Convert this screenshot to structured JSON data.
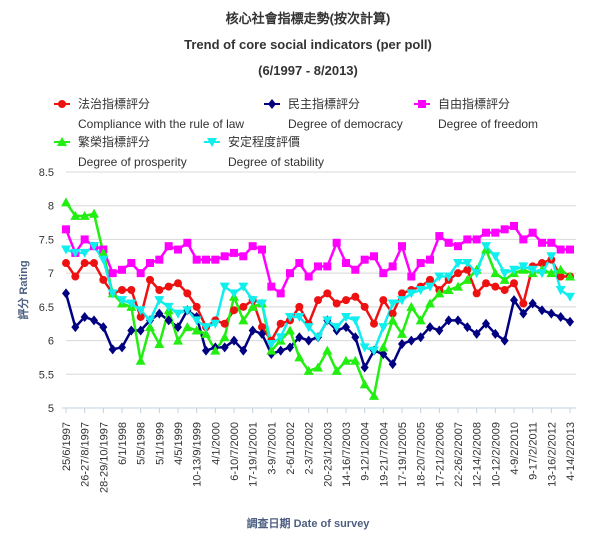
{
  "chart_data": {
    "type": "line",
    "title": "核心社會指標走勢(按次計算)",
    "subtitle": "Trend of core social indicators (per poll)",
    "period": "(6/1997 - 8/2013)",
    "y_label": "評分 Rating",
    "x_label": "調查日期 Date of survey",
    "categories": [
      "25/6/1997",
      null,
      "26-27/8/1997",
      null,
      "28-29/10/1997",
      null,
      "6/1/1998",
      null,
      "5/5/1998",
      null,
      "5/1/1999",
      null,
      "4/5/1999",
      null,
      "10-13/9/1999",
      null,
      "4/1/2000",
      null,
      "6-10/7/2000",
      null,
      "17-19/1/2001",
      null,
      "3-9/7/2001",
      null,
      "2-6/1/2002",
      null,
      "2-3/7/2002",
      null,
      "20-23/1/2003",
      null,
      "14-16/7/2003",
      null,
      "9-12/1/2004",
      null,
      "19-21/7/2004",
      null,
      "17-19/1/2005",
      null,
      "18-20/7/2005",
      null,
      "17-21/2/2006",
      null,
      "22-26/2/2007",
      null,
      "12-14/2/2008",
      null,
      "10-12/2/2009",
      null,
      "4-9/2/2010",
      null,
      "9-17/2/2011",
      null,
      "13-16/2/2012",
      null,
      "4-14/2/2013"
    ],
    "series": [
      {
        "name": "法治指標評分",
        "name_en": "Compliance with the rule of law",
        "color": "#ee1111",
        "marker": "circle",
        "values": [
          7.15,
          6.95,
          7.15,
          7.15,
          6.9,
          6.7,
          6.75,
          6.75,
          6.35,
          6.9,
          6.75,
          6.8,
          6.85,
          6.7,
          6.5,
          6.2,
          6.3,
          6.25,
          6.45,
          6.5,
          6.6,
          6.2,
          6.0,
          6.25,
          6.3,
          6.5,
          6.25,
          6.6,
          6.7,
          6.55,
          6.6,
          6.65,
          6.5,
          6.25,
          6.6,
          6.4,
          6.7,
          6.75,
          6.8,
          6.9,
          6.75,
          6.9,
          7.0,
          7.05,
          6.7,
          6.85,
          6.8,
          6.75,
          6.85,
          6.55,
          7.1,
          7.15,
          7.2,
          6.95,
          6.95
        ]
      },
      {
        "name": "民主指標評分",
        "name_en": "Degree of democracy",
        "color": "#000080",
        "marker": "diamond",
        "values": [
          6.7,
          6.2,
          6.35,
          6.3,
          6.2,
          5.87,
          5.9,
          6.15,
          6.15,
          6.3,
          6.4,
          6.3,
          6.2,
          6.45,
          6.35,
          5.85,
          5.9,
          5.9,
          6.0,
          5.85,
          6.15,
          6.1,
          5.8,
          5.85,
          5.9,
          6.05,
          6.0,
          6.05,
          6.3,
          6.15,
          6.2,
          6.05,
          5.6,
          5.85,
          5.8,
          5.65,
          5.95,
          6.0,
          6.05,
          6.2,
          6.15,
          6.3,
          6.3,
          6.2,
          6.1,
          6.25,
          6.1,
          6.0,
          6.6,
          6.4,
          6.55,
          6.45,
          6.4,
          6.35,
          6.28
        ]
      },
      {
        "name": "自由指標評分",
        "name_en": "Degree of freedom",
        "color": "#ff00ff",
        "marker": "square",
        "values": [
          7.65,
          7.3,
          7.5,
          7.4,
          7.35,
          7.0,
          7.05,
          7.15,
          7.0,
          7.15,
          7.2,
          7.4,
          7.35,
          7.45,
          7.2,
          7.2,
          7.2,
          7.25,
          7.3,
          7.25,
          7.4,
          7.35,
          6.8,
          6.7,
          7.0,
          7.15,
          6.95,
          7.1,
          7.1,
          7.45,
          7.15,
          7.05,
          7.2,
          7.25,
          7.0,
          7.1,
          7.4,
          6.95,
          7.15,
          7.2,
          7.55,
          7.45,
          7.4,
          7.5,
          7.5,
          7.6,
          7.6,
          7.65,
          7.7,
          7.5,
          7.6,
          7.45,
          7.45,
          7.35,
          7.35
        ]
      },
      {
        "name": "繁榮指標評分",
        "name_en": "Degree of prosperity",
        "color": "#22ee11",
        "marker": "triangle",
        "values": [
          8.05,
          7.85,
          7.85,
          7.88,
          7.3,
          6.7,
          6.55,
          6.5,
          5.7,
          6.2,
          5.95,
          6.45,
          6.0,
          6.2,
          6.15,
          6.1,
          5.85,
          6.05,
          6.65,
          6.3,
          6.5,
          6.55,
          5.85,
          6.0,
          6.15,
          5.75,
          5.55,
          5.6,
          5.85,
          5.55,
          5.7,
          5.7,
          5.35,
          5.18,
          5.9,
          6.3,
          6.1,
          6.5,
          6.3,
          6.55,
          6.7,
          6.75,
          6.8,
          6.9,
          7.05,
          7.35,
          7.0,
          6.9,
          7.0,
          7.05,
          7.0,
          7.05,
          7.0,
          7.05,
          6.95
        ]
      },
      {
        "name": "安定程度評價",
        "name_en": "Degree of stability",
        "color": "#11eeee",
        "marker": "triangle-down",
        "values": [
          7.35,
          7.3,
          7.3,
          7.4,
          7.2,
          6.7,
          6.6,
          6.55,
          6.45,
          6.3,
          6.6,
          6.5,
          6.4,
          6.45,
          6.3,
          6.2,
          6.25,
          6.8,
          6.7,
          6.8,
          6.6,
          6.55,
          5.95,
          6.05,
          6.35,
          6.35,
          6.2,
          6.05,
          6.3,
          6.2,
          6.35,
          6.3,
          5.9,
          5.85,
          6.2,
          6.55,
          6.6,
          6.7,
          6.75,
          6.8,
          6.95,
          6.95,
          7.15,
          7.15,
          7.0,
          7.4,
          7.25,
          7.0,
          7.05,
          7.1,
          7.05,
          7.0,
          7.25,
          6.75,
          6.65
        ]
      }
    ],
    "ylim": [
      5,
      8.5
    ],
    "yticks": [
      5,
      5.5,
      6,
      6.5,
      7,
      7.5,
      8,
      8.5
    ],
    "grid": true
  }
}
